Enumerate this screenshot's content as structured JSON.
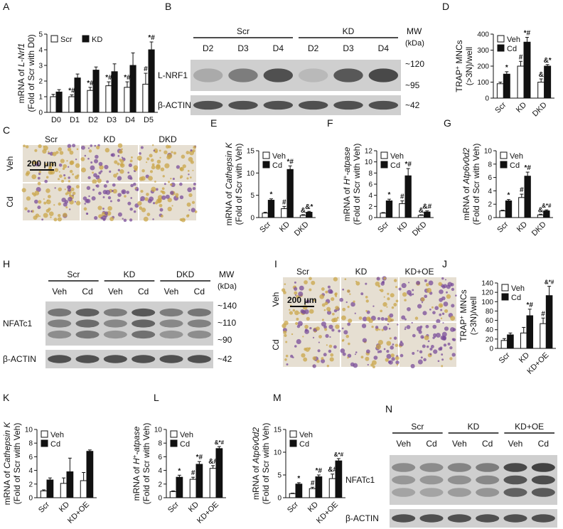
{
  "palette": {
    "black": "#111111",
    "white": "#ffffff",
    "blot_bg": "#cfcfcf",
    "band": "#3a3a3a",
    "stain_purple": "#7a4d9a",
    "stain_yellow": "#c9a648"
  },
  "panel_letters": [
    "A",
    "B",
    "C",
    "D",
    "E",
    "F",
    "G",
    "H",
    "I",
    "J",
    "K",
    "L",
    "M",
    "N"
  ],
  "chart_data": [
    {
      "id": "A",
      "type": "bar",
      "ylabel_line1": "mRNA of ",
      "ylabel_gene": "L-Nrf1",
      "ylabel_line2": "(Fold of Scr with D0)",
      "categories": [
        "D0",
        "D1",
        "D2",
        "D3",
        "D4",
        "D5"
      ],
      "ylim": [
        0,
        5
      ],
      "yticks": [
        "0",
        "1",
        "2",
        "3",
        "4",
        "5"
      ],
      "legend_position": "top-left",
      "series": [
        {
          "name": "Scr",
          "fill": "white",
          "values": [
            1.0,
            1.0,
            1.4,
            1.7,
            1.6,
            1.8
          ],
          "err": [
            0.15,
            0.12,
            0.2,
            0.25,
            0.35,
            0.7
          ]
        },
        {
          "name": "KD",
          "fill": "black",
          "values": [
            1.3,
            2.2,
            2.7,
            2.6,
            3.0,
            4.0
          ],
          "err": [
            0.15,
            0.25,
            0.2,
            0.5,
            0.8,
            0.5
          ]
        }
      ],
      "marks": [
        [],
        [
          "*#"
        ],
        [
          "*#"
        ],
        [
          "*#"
        ],
        [
          "*#"
        ],
        [
          "#",
          "*#"
        ]
      ]
    },
    {
      "id": "D",
      "type": "bar",
      "ylabel_line1": "TRAP",
      "ylabel_sup": "+",
      "ylabel_line1b": " MNCs",
      "ylabel_line2": "(>3N)/well",
      "categories": [
        "Scr",
        "KD",
        "DKD"
      ],
      "ylim": [
        0,
        400
      ],
      "yticks": [
        "0",
        "100",
        "200",
        "300",
        "400"
      ],
      "legend_position": "top-left",
      "series": [
        {
          "name": "Veh",
          "fill": "white",
          "values": [
            90,
            200,
            100
          ],
          "err": [
            10,
            30,
            20
          ]
        },
        {
          "name": "Cd",
          "fill": "black",
          "values": [
            150,
            350,
            200
          ],
          "err": [
            15,
            30,
            10
          ]
        }
      ],
      "marks": [
        [
          "",
          "*"
        ],
        [
          "#",
          "*#"
        ],
        [
          "&",
          "&*"
        ]
      ]
    },
    {
      "id": "E",
      "type": "bar",
      "ylabel_line1": "mRNA of ",
      "ylabel_gene": "Cathepsin K",
      "ylabel_line2": "(Fold of Scr with Veh)",
      "categories": [
        "Scr",
        "KD",
        "DKD"
      ],
      "ylim": [
        0,
        15
      ],
      "yticks": [
        "0",
        "5",
        "10",
        "15"
      ],
      "legend_position": "top-left",
      "series": [
        {
          "name": "Veh",
          "fill": "white",
          "values": [
            1.0,
            2.0,
            0.5
          ],
          "err": [
            0.2,
            0.5,
            0.15
          ]
        },
        {
          "name": "Cd",
          "fill": "black",
          "values": [
            3.9,
            10.8,
            1.2
          ],
          "err": [
            0.3,
            0.8,
            0.2
          ]
        }
      ],
      "marks": [
        [
          "",
          "*"
        ],
        [
          "#",
          "*#"
        ],
        [
          "&",
          "&*"
        ]
      ]
    },
    {
      "id": "F",
      "type": "bar",
      "ylabel_line1": "mRNA of ",
      "ylabel_gene": "H",
      "ylabel_sup": "+",
      "ylabel_gene2": "-atpase",
      "ylabel_line2": "(Fold of Scr with Veh)",
      "categories": [
        "Scr",
        "KD",
        "DKD"
      ],
      "ylim": [
        0,
        12
      ],
      "yticks": [
        "0",
        "2",
        "4",
        "6",
        "8",
        "10",
        "12"
      ],
      "legend_position": "top-left",
      "series": [
        {
          "name": "Veh",
          "fill": "white",
          "values": [
            0.8,
            2.5,
            0.4
          ],
          "err": [
            0.1,
            0.5,
            0.1
          ]
        },
        {
          "name": "Cd",
          "fill": "black",
          "values": [
            3.0,
            7.5,
            1.0
          ],
          "err": [
            0.3,
            1.3,
            0.2
          ]
        }
      ],
      "marks": [
        [
          "",
          "*"
        ],
        [
          "#",
          "*#"
        ],
        [
          "&",
          "&#"
        ]
      ]
    },
    {
      "id": "G",
      "type": "bar",
      "ylabel_line1": "mRNA of ",
      "ylabel_gene": "Atp6v0d2",
      "ylabel_line2": "(Fold of Scr with Veh)",
      "categories": [
        "Scr",
        "KD",
        "DKD"
      ],
      "ylim": [
        0,
        10
      ],
      "yticks": [
        "0",
        "2",
        "4",
        "6",
        "8",
        "10"
      ],
      "legend_position": "top-left",
      "series": [
        {
          "name": "Veh",
          "fill": "white",
          "values": [
            1.0,
            3.0,
            0.4
          ],
          "err": [
            0.1,
            0.5,
            0.1
          ]
        },
        {
          "name": "Cd",
          "fill": "black",
          "values": [
            2.5,
            6.2,
            1.0
          ],
          "err": [
            0.2,
            0.6,
            0.15
          ]
        }
      ],
      "marks": [
        [
          "",
          "*"
        ],
        [
          "#",
          "*#"
        ],
        [
          "&",
          "&*#"
        ]
      ]
    },
    {
      "id": "J",
      "type": "bar",
      "ylabel_line1": "TRAP",
      "ylabel_sup": "+",
      "ylabel_line1b": " MNCs",
      "ylabel_line2": "(>3N)/well",
      "categories": [
        "Scr",
        "KD",
        "KD+OE"
      ],
      "ylim": [
        0,
        140
      ],
      "yticks": [
        "0",
        "20",
        "40",
        "60",
        "80",
        "100",
        "120",
        "140"
      ],
      "legend_position": "top-left",
      "series": [
        {
          "name": "Veh",
          "fill": "white",
          "values": [
            17,
            33,
            53
          ],
          "err": [
            4,
            12,
            12
          ]
        },
        {
          "name": "Cd",
          "fill": "black",
          "values": [
            29,
            70,
            113
          ],
          "err": [
            4,
            14,
            20
          ]
        }
      ],
      "marks": [
        [
          "",
          ""
        ],
        [
          "",
          "*#"
        ],
        [
          "#",
          "&*#"
        ]
      ]
    },
    {
      "id": "K",
      "type": "bar",
      "ylabel_line1": "mRNA of ",
      "ylabel_gene": "Cathepsin K",
      "ylabel_line2": "(Fold of Scr with Veh)",
      "categories": [
        "Scr",
        "KD",
        "KD+OE"
      ],
      "ylim": [
        0,
        10
      ],
      "yticks": [
        "0",
        "2",
        "4",
        "6",
        "8",
        "10"
      ],
      "legend_position": "top-left",
      "series": [
        {
          "name": "Veh",
          "fill": "white",
          "values": [
            1.0,
            2.1,
            2.5
          ],
          "err": [
            0.15,
            0.8,
            1.2
          ]
        },
        {
          "name": "Cd",
          "fill": "black",
          "values": [
            2.6,
            3.8,
            6.8
          ],
          "err": [
            0.3,
            2.0,
            0.2
          ]
        }
      ],
      "marks": [
        [
          "",
          ""
        ],
        [
          "",
          ""
        ],
        [
          "",
          ""
        ]
      ]
    },
    {
      "id": "L",
      "type": "bar",
      "ylabel_line1": "mRNA of ",
      "ylabel_gene": "H",
      "ylabel_sup": "+",
      "ylabel_gene2": "-atpase",
      "ylabel_line2": "(Fold of Scr with Veh)",
      "categories": [
        "Scr",
        "KD",
        "KD+OE"
      ],
      "ylim": [
        0,
        10
      ],
      "yticks": [
        "0",
        "2",
        "4",
        "6",
        "8",
        "10"
      ],
      "legend_position": "top-left",
      "series": [
        {
          "name": "Veh",
          "fill": "white",
          "values": [
            0.9,
            2.7,
            4.3
          ],
          "err": [
            0.1,
            0.3,
            0.4
          ]
        },
        {
          "name": "Cd",
          "fill": "black",
          "values": [
            3.0,
            4.9,
            7.2
          ],
          "err": [
            0.3,
            0.4,
            0.3
          ]
        }
      ],
      "marks": [
        [
          "",
          "*"
        ],
        [
          "#",
          "*#"
        ],
        [
          "&#",
          "&*#"
        ]
      ]
    },
    {
      "id": "M",
      "type": "bar",
      "ylabel_line1": "mRNA of ",
      "ylabel_gene": "Atp6v0d2",
      "ylabel_line2": "(Fold of Scr with Veh)",
      "categories": [
        "Scr",
        "KD",
        "KD+OE"
      ],
      "ylim": [
        0,
        15
      ],
      "yticks": [
        "0",
        "5",
        "10",
        "15"
      ],
      "legend_position": "top-left",
      "series": [
        {
          "name": "Veh",
          "fill": "white",
          "values": [
            0.9,
            2.0,
            4.2
          ],
          "err": [
            0.1,
            0.3,
            1.0
          ]
        },
        {
          "name": "Cd",
          "fill": "black",
          "values": [
            3.0,
            4.6,
            8.1
          ],
          "err": [
            0.3,
            0.4,
            0.5
          ]
        }
      ],
      "marks": [
        [
          "",
          "*"
        ],
        [
          "#",
          "*#"
        ],
        [
          "&#",
          "&*#"
        ]
      ]
    }
  ],
  "blots": {
    "B": {
      "groups": [
        "Scr",
        "KD"
      ],
      "lanes": [
        "D2",
        "D3",
        "D4",
        "D2",
        "D3",
        "D4"
      ],
      "mw_header": "MW",
      "mw_unit": "(kDa)",
      "rows": [
        {
          "label": "L-NRF1",
          "mw": [
            "~120",
            "~95"
          ]
        },
        {
          "label": "β-ACTIN",
          "mw": [
            "~42"
          ]
        }
      ],
      "band_intensity": [
        0.25,
        0.55,
        0.85,
        0.15,
        0.8,
        0.9
      ]
    },
    "H": {
      "groups": [
        "Scr",
        "KD",
        "DKD"
      ],
      "lanes": [
        "Veh",
        "Cd",
        "Veh",
        "Cd",
        "Veh",
        "Cd"
      ],
      "mw_header": "MW",
      "mw_unit": "(kDa)",
      "rows": [
        {
          "label": "NFATc1",
          "mw": [
            "~140",
            "~110",
            "~90"
          ]
        },
        {
          "label": "β-ACTIN",
          "mw": [
            "~42"
          ]
        }
      ],
      "band_intensity": [
        0.6,
        0.75,
        0.55,
        0.8,
        0.55,
        0.6
      ]
    },
    "N": {
      "groups": [
        "Scr",
        "KD",
        "KD+OE"
      ],
      "lanes": [
        "Veh",
        "Cd",
        "Veh",
        "Cd",
        "Veh",
        "Cd"
      ],
      "rows": [
        {
          "label": "NFATc1",
          "mw": []
        },
        {
          "label": "β-ACTIN",
          "mw": []
        }
      ],
      "band_intensity": [
        0.45,
        0.45,
        0.5,
        0.55,
        0.9,
        0.95
      ]
    }
  },
  "micrographs": {
    "C": {
      "columns": [
        "Scr",
        "KD",
        "DKD"
      ],
      "rows": [
        "Veh",
        "Cd"
      ],
      "scale_bar": "200 μm",
      "stain_level": [
        [
          0.15,
          0.55,
          0.2
        ],
        [
          0.35,
          0.7,
          0.4
        ]
      ]
    },
    "I": {
      "columns": [
        "Scr",
        "KD",
        "KD+OE"
      ],
      "rows": [
        "Veh",
        "Cd"
      ],
      "scale_bar": "200 μm",
      "stain_level": [
        [
          0.3,
          0.45,
          0.7
        ],
        [
          0.4,
          0.6,
          0.85
        ]
      ]
    }
  }
}
